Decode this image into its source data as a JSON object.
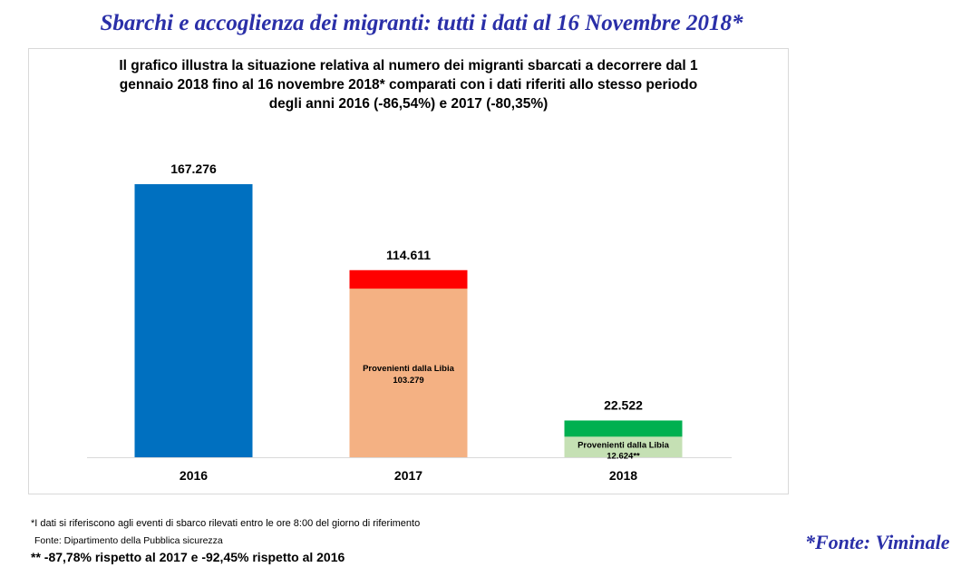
{
  "page": {
    "title": "Sbarchi e accoglienza dei migranti: tutti i dati al 16 Novembre 2018*",
    "source": "*Fonte: Viminale"
  },
  "footnotes": {
    "note1": "*I dati si riferiscono agli eventi di sbarco rilevati entro le ore 8:00 del giorno di riferimento",
    "note2": "Fonte: Dipartimento della Pubblica sicurezza",
    "note3": "** -87,78% rispetto al 2017 e -92,45% rispetto al 2016"
  },
  "chart_data": {
    "type": "bar",
    "title_lines": [
      "Il grafico illustra la situazione relativa al numero dei migranti sbarcati a decorrere dal 1",
      "gennaio 2018 fino al 16 novembre 2018* comparati con i dati riferiti allo stesso periodo",
      "degli anni 2016 (-86,54%) e 2017 (-80,35%)"
    ],
    "xlabel": "",
    "ylabel": "",
    "ylim": [
      0,
      170000
    ],
    "grid": false,
    "legend": "none",
    "categories": [
      "2016",
      "2017",
      "2018"
    ],
    "values": [
      167276,
      114611,
      22522
    ],
    "value_labels": [
      "167.276",
      "114.611",
      "22.522"
    ],
    "bar_colors": [
      "#0070c0",
      "#ff0000",
      "#00b050"
    ],
    "sub_series": {
      "name": "Provenienti dalla Libia",
      "values": [
        null,
        103279,
        12624
      ],
      "value_labels": [
        null,
        "103.279",
        "12.624**"
      ],
      "colors": [
        null,
        "#f4b183",
        "#c5e0b4"
      ]
    }
  }
}
